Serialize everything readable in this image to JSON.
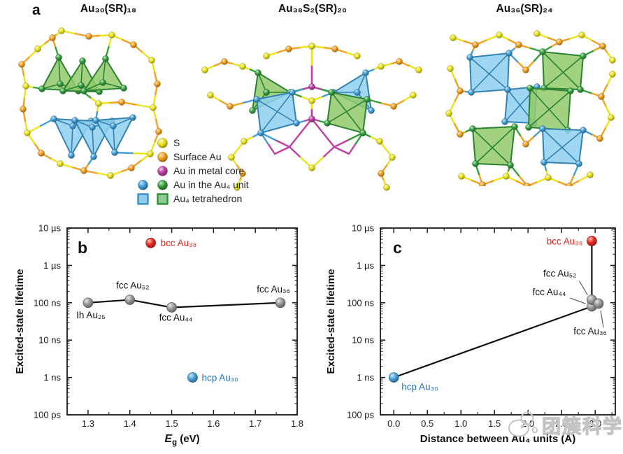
{
  "palette": {
    "sulfur_yellow": "#ece41b",
    "surface_au_orange": "#f5a01e",
    "core_magenta": "#bf3fa4",
    "au4_blue": "#3f9fd8",
    "au4_green": "#33a03c",
    "tet_blue_fill": "#8ed0f0",
    "tet_green_fill": "#92ca6a",
    "point_gray": "#9a9a9a",
    "point_red": "#ee2b20",
    "point_blue": "#49a4de",
    "label_red": "#e8251d",
    "label_blue": "#2273b8",
    "axis_black": "#1a1a1a",
    "watermark_gray": "#c3c3c3"
  },
  "panel_a": {
    "label": "a",
    "structures": [
      {
        "title": "Au₃₀(SR)₁₈"
      },
      {
        "title": "Au₃₈S₂(SR)₂₀"
      },
      {
        "title": "Au₃₆(SR)₂₄"
      }
    ],
    "legend": {
      "items": [
        {
          "label": "S",
          "icons": [
            "yellow-sphere"
          ]
        },
        {
          "label": "Surface Au",
          "icons": [
            "orange-sphere"
          ]
        },
        {
          "label": "Au in metal core",
          "icons": [
            "magenta-sphere"
          ]
        },
        {
          "label": "Au in the Au₄ unit",
          "icons": [
            "blue-sphere",
            "green-sphere"
          ]
        },
        {
          "label": "Au₄ tetrahedron",
          "icons": [
            "blue-square",
            "green-square"
          ]
        }
      ]
    }
  },
  "chart_data": [
    {
      "id": "b",
      "type": "scatter",
      "panel_label": "b",
      "xlabel_main": "E",
      "xlabel_sub": "g",
      "xlabel_rest": " (eV)",
      "ylabel": "Excited-state lifetime",
      "x_ticks": [
        1.3,
        1.4,
        1.5,
        1.6,
        1.7,
        1.8
      ],
      "xlim": [
        1.25,
        1.8
      ],
      "y_scale": "log",
      "ylim_seconds": [
        1e-10,
        1e-05
      ],
      "y_tick_labels": [
        "10 µs",
        "1 µs",
        "100 ns",
        "10 ns",
        "1 ns",
        "100 ps"
      ],
      "points": [
        {
          "label": "Ih Au₂₅",
          "x": 1.3,
          "lifetime_ns": 100,
          "color": "gray"
        },
        {
          "label": "fcc Au₅₂",
          "x": 1.4,
          "lifetime_ns": 120,
          "color": "gray"
        },
        {
          "label": "fcc Au₄₄",
          "x": 1.5,
          "lifetime_ns": 75,
          "color": "gray"
        },
        {
          "label": "fcc Au₃₆",
          "x": 1.76,
          "lifetime_ns": 100,
          "color": "gray"
        },
        {
          "label": "bcc Au₃₈",
          "x": 1.45,
          "lifetime_ns": 4000,
          "color": "red"
        },
        {
          "label": "hcp Au₃₀",
          "x": 1.55,
          "lifetime_ns": 1,
          "color": "blue"
        }
      ],
      "line_indices": [
        0,
        1,
        2,
        3
      ]
    },
    {
      "id": "c",
      "type": "scatter",
      "panel_label": "c",
      "xlabel": "Distance between Au₄ units (Å)",
      "ylabel": "Excited-state lifetime",
      "x_ticks": [
        0.0,
        0.5,
        1.0,
        1.5,
        2.0,
        2.5,
        3.0
      ],
      "xlim": [
        -0.2,
        3.3
      ],
      "y_scale": "log",
      "ylim_seconds": [
        1e-10,
        1e-05
      ],
      "y_tick_labels": [
        "10 µs",
        "1 µs",
        "100 ns",
        "10 ns",
        "1 ns",
        "100 ps"
      ],
      "points": [
        {
          "label": "hcp Au₃₀",
          "x": 0.0,
          "lifetime_ns": 1,
          "color": "blue"
        },
        {
          "label": "fcc Au₄₄",
          "x": 2.95,
          "lifetime_ns": 80,
          "color": "gray"
        },
        {
          "label": "fcc Au₅₂",
          "x": 2.95,
          "lifetime_ns": 120,
          "color": "gray"
        },
        {
          "label": "fcc Au₃₆",
          "x": 3.05,
          "lifetime_ns": 95,
          "color": "gray"
        },
        {
          "label": "bcc Au₃₈",
          "x": 2.95,
          "lifetime_ns": 4500,
          "color": "red"
        }
      ],
      "segments": [
        [
          0,
          1
        ],
        [
          1,
          4
        ]
      ]
    }
  ],
  "watermark": {
    "text": "团簇科学"
  }
}
